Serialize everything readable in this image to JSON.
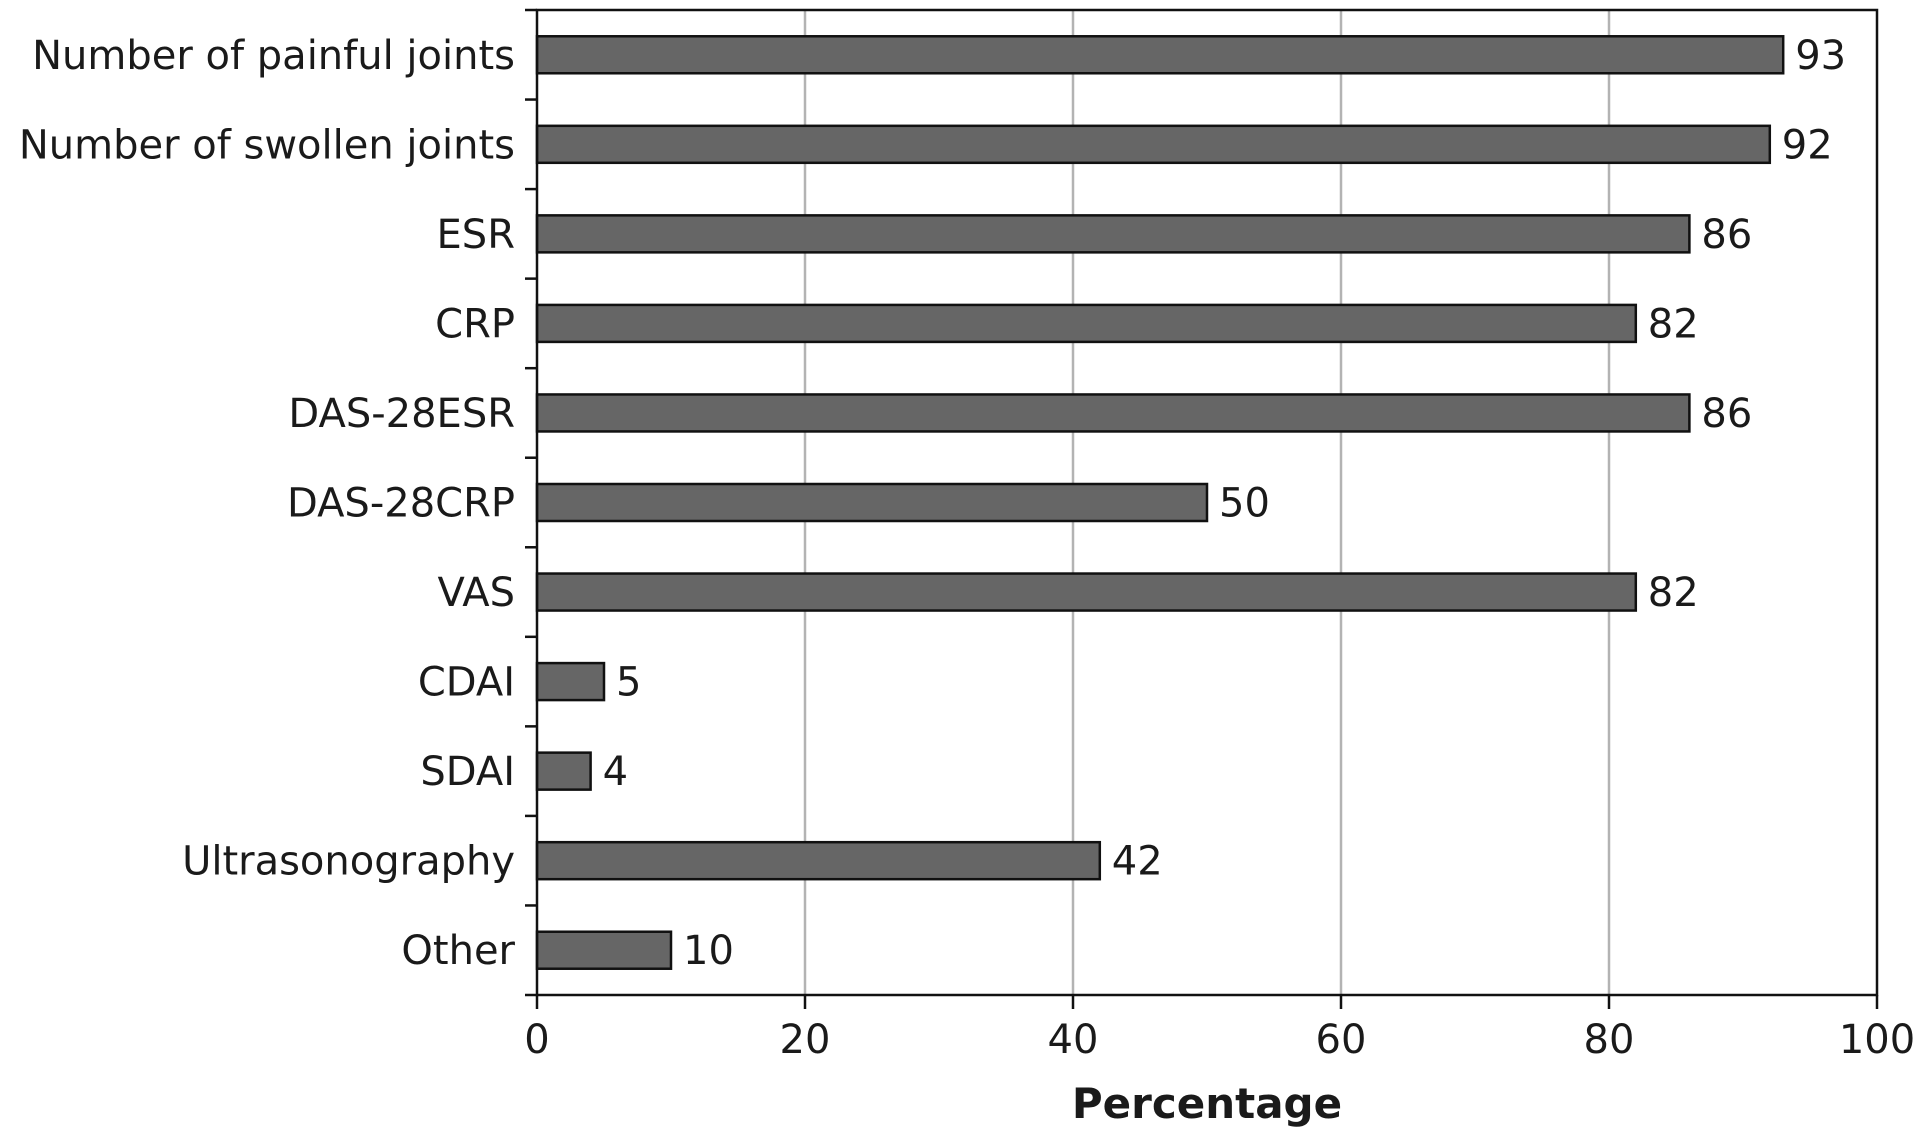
{
  "chart_data": {
    "type": "bar",
    "orientation": "horizontal",
    "categories": [
      "Number of painful joints",
      "Number of swollen joints",
      "ESR",
      "CRP",
      "DAS-28ESR",
      "DAS-28CRP",
      "VAS",
      "CDAI",
      "SDAI",
      "Ultrasonography",
      "Other"
    ],
    "values": [
      93,
      92,
      86,
      82,
      86,
      50,
      82,
      5,
      4,
      42,
      10
    ],
    "data_labels": [
      "93",
      "92",
      "86",
      "82",
      "86",
      "50",
      "82",
      "5",
      "4",
      "42",
      "10"
    ],
    "xlabel": "Percentage",
    "ylabel": "",
    "xlim": [
      0,
      100
    ],
    "xticks": [
      0,
      20,
      40,
      60,
      80,
      100
    ],
    "xtick_labels": [
      "0",
      "20",
      "40",
      "60",
      "80",
      "100"
    ],
    "grid": "vertical",
    "legend": "none",
    "colors": {
      "bar_fill": "#666666",
      "bar_edge": "#111111",
      "grid": "#b3b3b3"
    }
  }
}
